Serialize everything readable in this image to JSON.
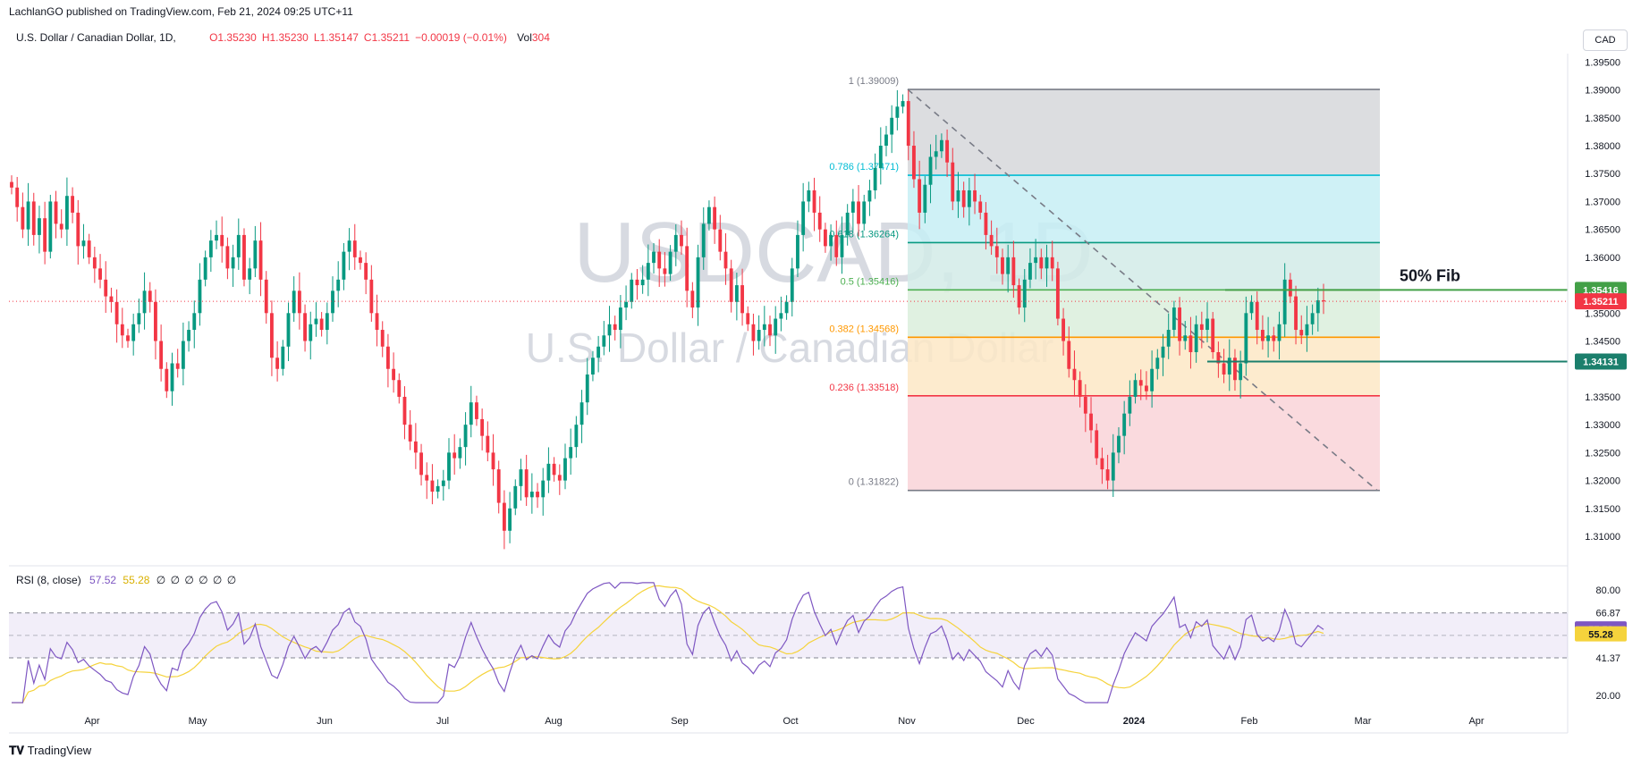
{
  "header": {
    "published": "LachlanGO published on TradingView.com, Feb 21, 2024 09:25 UTC+11",
    "symbol": "U.S. Dollar / Canadian Dollar, 1D,",
    "open": "O1.35230",
    "high": "H1.35230",
    "low": "L1.35147",
    "close": "C1.35211",
    "change": "−0.00019 (−0.01%)",
    "vol_label": "Vol",
    "vol_value": "304",
    "currency_button": "CAD"
  },
  "watermark": {
    "ticker": "USDCAD, 1D",
    "name": "U.S. Dollar / Canadian Dollar"
  },
  "footer": {
    "brand": "TradingView"
  },
  "colors": {
    "up": "#089981",
    "down": "#f23645",
    "rsi": "#7e57c2",
    "rsi_ma": "#f5d33c",
    "fib_1": "#787b86",
    "fib_786": "#00bcd4",
    "fib_618": "#089981",
    "fib_5": "#4caf50",
    "fib_382": "#ff9800",
    "fib_236": "#f23645",
    "fib_0": "#787b86"
  },
  "chart_data": [
    {
      "type": "candlestick",
      "title": "U.S. Dollar / Canadian Dollar, 1D",
      "xlabel": "",
      "ylabel": "",
      "ylim": [
        1.306,
        1.3965
      ],
      "y_ticks": [
        "1.39500",
        "1.39000",
        "1.38500",
        "1.38000",
        "1.37500",
        "1.37000",
        "1.36500",
        "1.36000",
        "1.35500",
        "1.35000",
        "1.34500",
        "1.34000",
        "1.33500",
        "1.33000",
        "1.32500",
        "1.32000",
        "1.31500",
        "1.31000"
      ],
      "x_ticks": [
        "Apr",
        "May",
        "Jun",
        "Jul",
        "Aug",
        "Sep",
        "Oct",
        "Nov",
        "Dec",
        "2024",
        "Feb",
        "Mar",
        "Apr"
      ],
      "last_price": "1.35211",
      "fib_start_anchor": "1 (1.39009)",
      "fib_levels": [
        {
          "ratio": "1",
          "price": 1.39009,
          "label": "1 (1.39009)"
        },
        {
          "ratio": "0.786",
          "price": 1.37471,
          "label": "0.786 (1.37471)"
        },
        {
          "ratio": "0.618",
          "price": 1.36264,
          "label": "0.618 (1.36264)"
        },
        {
          "ratio": "0.5",
          "price": 1.35416,
          "label": "0.5 (1.35416)"
        },
        {
          "ratio": "0.382",
          "price": 1.34568,
          "label": "0.382 (1.34568)"
        },
        {
          "ratio": "0.236",
          "price": 1.33518,
          "label": "0.236 (1.33518)"
        },
        {
          "ratio": "0",
          "price": 1.31822,
          "label": "0 (1.31822)"
        }
      ],
      "annotations": [
        {
          "text": "50% Fib",
          "price": 1.35416,
          "badge": "1.35416"
        },
        {
          "text": "",
          "price": 1.34131,
          "badge": "1.34131"
        }
      ],
      "closes": [
        1.3725,
        1.369,
        1.365,
        1.37,
        1.364,
        1.367,
        1.361,
        1.37,
        1.366,
        1.365,
        1.371,
        1.368,
        1.362,
        1.363,
        1.36,
        1.358,
        1.356,
        1.353,
        1.352,
        1.348,
        1.346,
        1.345,
        1.348,
        1.35,
        1.354,
        1.352,
        1.345,
        1.34,
        1.336,
        1.341,
        1.34,
        1.345,
        1.347,
        1.35,
        1.356,
        1.36,
        1.363,
        1.364,
        1.362,
        1.358,
        1.36,
        1.364,
        1.356,
        1.358,
        1.363,
        1.356,
        1.35,
        1.342,
        1.34,
        1.344,
        1.35,
        1.354,
        1.35,
        1.345,
        1.348,
        1.349,
        1.347,
        1.35,
        1.354,
        1.356,
        1.361,
        1.363,
        1.36,
        1.359,
        1.356,
        1.35,
        1.347,
        1.344,
        1.34,
        1.338,
        1.335,
        1.33,
        1.327,
        1.325,
        1.321,
        1.32,
        1.318,
        1.319,
        1.32,
        1.325,
        1.324,
        1.326,
        1.33,
        1.334,
        1.331,
        1.328,
        1.325,
        1.322,
        1.316,
        1.311,
        1.315,
        1.319,
        1.322,
        1.317,
        1.318,
        1.317,
        1.32,
        1.323,
        1.321,
        1.32,
        1.324,
        1.326,
        1.33,
        1.334,
        1.339,
        1.342,
        1.344,
        1.346,
        1.348,
        1.347,
        1.351,
        1.352,
        1.356,
        1.355,
        1.356,
        1.359,
        1.361,
        1.358,
        1.357,
        1.361,
        1.364,
        1.362,
        1.354,
        1.351,
        1.36,
        1.366,
        1.369,
        1.365,
        1.361,
        1.358,
        1.352,
        1.355,
        1.35,
        1.348,
        1.345,
        1.347,
        1.348,
        1.346,
        1.349,
        1.35,
        1.352,
        1.358,
        1.364,
        1.37,
        1.372,
        1.368,
        1.365,
        1.362,
        1.364,
        1.36,
        1.364,
        1.368,
        1.37,
        1.366,
        1.37,
        1.372,
        1.376,
        1.38,
        1.382,
        1.385,
        1.387,
        1.388,
        1.38,
        1.374,
        1.368,
        1.373,
        1.378,
        1.379,
        1.381,
        1.377,
        1.37,
        1.372,
        1.369,
        1.372,
        1.37,
        1.368,
        1.364,
        1.362,
        1.36,
        1.357,
        1.36,
        1.355,
        1.351,
        1.356,
        1.359,
        1.36,
        1.358,
        1.36,
        1.358,
        1.349,
        1.345,
        1.34,
        1.338,
        1.335,
        1.332,
        1.329,
        1.324,
        1.322,
        1.32,
        1.325,
        1.328,
        1.332,
        1.335,
        1.338,
        1.337,
        1.336,
        1.34,
        1.342,
        1.344,
        1.347,
        1.351,
        1.345,
        1.346,
        1.343,
        1.348,
        1.347,
        1.349,
        1.343,
        1.341,
        1.339,
        1.342,
        1.338,
        1.341,
        1.35,
        1.352,
        1.347,
        1.345,
        1.346,
        1.345,
        1.348,
        1.356,
        1.353,
        1.347,
        1.346,
        1.348,
        1.35,
        1.3523,
        1.3521
      ],
      "rsi": {
        "title": "RSI (8, close)",
        "rsi_value": "57.52",
        "ma_value": "55.28",
        "extra_values": "∅ ∅ ∅ ∅ ∅ ∅",
        "ylim": [
          14,
          86
        ],
        "y_ticks": [
          "80.00",
          "66.87",
          "41.37",
          "20.00"
        ],
        "upper_band": 66.87,
        "lower_band": 41.37,
        "middle_band": 54.12,
        "last_rsi": "57.52",
        "last_ma": "55.28"
      }
    }
  ]
}
